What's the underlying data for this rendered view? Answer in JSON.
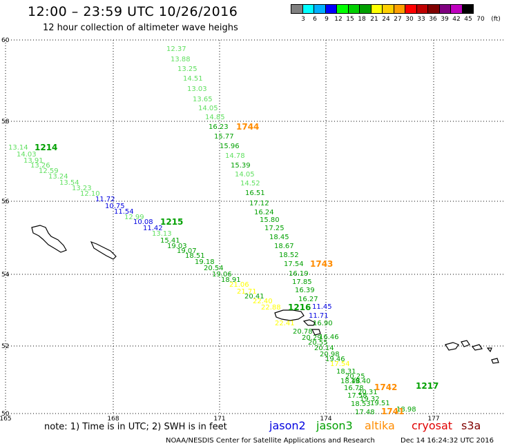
{
  "header": {
    "title": "12:00 – 23:59 UTC 10/26/2016",
    "subtitle": "12 hour collection of altimeter wave heighs"
  },
  "legend": {
    "colors": [
      "#808080",
      "#00ffff",
      "#00b0ff",
      "#0000ff",
      "#00ff00",
      "#00d000",
      "#00a000",
      "#ffff00",
      "#ffd000",
      "#ffa000",
      "#ff0000",
      "#c00000",
      "#800000",
      "#800080",
      "#c000c0",
      "#000000"
    ],
    "labels": [
      "3",
      "6",
      "9",
      "12",
      "15",
      "18",
      "21",
      "24",
      "27",
      "30",
      "33",
      "36",
      "39",
      "42",
      "45",
      "70",
      "(ft)"
    ]
  },
  "map": {
    "lat_labels": [
      "60",
      "58",
      "56",
      "54",
      "52",
      "50"
    ],
    "lon_labels": [
      "165",
      "168",
      "171",
      "174",
      "177"
    ],
    "colors": {
      "light": "#60e060",
      "green": "#00a000",
      "blue": "#0000e0",
      "yellow": "#ffff00",
      "orange": "#ff8c00"
    },
    "track_labels": [
      {
        "t": "1214",
        "c": "green",
        "b": true
      },
      {
        "t": "1215",
        "c": "green",
        "b": true
      },
      {
        "t": "1744",
        "c": "orange",
        "b": true
      },
      {
        "t": "1743",
        "c": "orange",
        "b": true
      },
      {
        "t": "1216",
        "c": "green",
        "b": true
      },
      {
        "t": "1217",
        "c": "green",
        "b": true
      },
      {
        "t": "1742",
        "c": "orange",
        "b": true
      },
      {
        "t": "1741",
        "c": "orange",
        "b": true
      }
    ],
    "swh_values": [
      {
        "v": "12.37",
        "c": "light"
      },
      {
        "v": "13.88",
        "c": "light"
      },
      {
        "v": "13.25",
        "c": "light"
      },
      {
        "v": "14.51",
        "c": "light"
      },
      {
        "v": "13.03",
        "c": "light"
      },
      {
        "v": "13.65",
        "c": "light"
      },
      {
        "v": "14.05",
        "c": "light"
      },
      {
        "v": "14.85",
        "c": "light"
      },
      {
        "v": "16.23",
        "c": "green"
      },
      {
        "v": "15.77",
        "c": "green"
      },
      {
        "v": "15.96",
        "c": "green"
      },
      {
        "v": "14.78",
        "c": "light"
      },
      {
        "v": "15.39",
        "c": "green"
      },
      {
        "v": "14.05",
        "c": "light"
      },
      {
        "v": "14.52",
        "c": "light"
      },
      {
        "v": "16.51",
        "c": "green"
      },
      {
        "v": "17.12",
        "c": "green"
      },
      {
        "v": "16.24",
        "c": "green"
      },
      {
        "v": "15.80",
        "c": "green"
      },
      {
        "v": "17.25",
        "c": "green"
      },
      {
        "v": "18.45",
        "c": "green"
      },
      {
        "v": "18.67",
        "c": "green"
      },
      {
        "v": "18.52",
        "c": "green"
      },
      {
        "v": "17.54",
        "c": "green"
      },
      {
        "v": "16.19",
        "c": "green"
      },
      {
        "v": "17.85",
        "c": "green"
      },
      {
        "v": "16.39",
        "c": "green"
      },
      {
        "v": "16.27",
        "c": "green"
      },
      {
        "v": "11.45",
        "c": "blue"
      },
      {
        "v": "11.71",
        "c": "blue"
      },
      {
        "v": "16.90",
        "c": "green"
      },
      {
        "v": "16.46",
        "c": "green"
      },
      {
        "v": "13.14",
        "c": "light"
      },
      {
        "v": "14.03",
        "c": "light"
      },
      {
        "v": "13.91",
        "c": "light"
      },
      {
        "v": "13.26",
        "c": "light"
      },
      {
        "v": "12.59",
        "c": "light"
      },
      {
        "v": "13.24",
        "c": "light"
      },
      {
        "v": "13.54",
        "c": "light"
      },
      {
        "v": "13.23",
        "c": "light"
      },
      {
        "v": "12.10",
        "c": "light"
      },
      {
        "v": "11.72",
        "c": "blue"
      },
      {
        "v": "10.75",
        "c": "blue"
      },
      {
        "v": "11.54",
        "c": "blue"
      },
      {
        "v": "12.99",
        "c": "light"
      },
      {
        "v": "10.08",
        "c": "blue"
      },
      {
        "v": "11.42",
        "c": "blue"
      },
      {
        "v": "13.13",
        "c": "light"
      },
      {
        "v": "15.41",
        "c": "green"
      },
      {
        "v": "19.03",
        "c": "green"
      },
      {
        "v": "19.07",
        "c": "green"
      },
      {
        "v": "18.51",
        "c": "green"
      },
      {
        "v": "19.18",
        "c": "green"
      },
      {
        "v": "20.54",
        "c": "green"
      },
      {
        "v": "19.06",
        "c": "green"
      },
      {
        "v": "18.91",
        "c": "green"
      },
      {
        "v": "21.06",
        "c": "yellow"
      },
      {
        "v": "21.71",
        "c": "yellow"
      },
      {
        "v": "20.41",
        "c": "green"
      },
      {
        "v": "22.40",
        "c": "yellow"
      },
      {
        "v": "22.88",
        "c": "yellow"
      },
      {
        "v": "22.41",
        "c": "yellow"
      },
      {
        "v": "20.78",
        "c": "green"
      },
      {
        "v": "20.29",
        "c": "green"
      },
      {
        "v": "20.55",
        "c": "green"
      },
      {
        "v": "20.14",
        "c": "green"
      },
      {
        "v": "20.98",
        "c": "green"
      },
      {
        "v": "19.46",
        "c": "green"
      },
      {
        "v": "17.54",
        "c": "yellow"
      },
      {
        "v": "18.31",
        "c": "green"
      },
      {
        "v": "20.25",
        "c": "green"
      },
      {
        "v": "18.48",
        "c": "green"
      },
      {
        "v": "19.40",
        "c": "green"
      },
      {
        "v": "16.78",
        "c": "green"
      },
      {
        "v": "20.31",
        "c": "green"
      },
      {
        "v": "17.58",
        "c": "green"
      },
      {
        "v": "19.32",
        "c": "green"
      },
      {
        "v": "18.53",
        "c": "green"
      },
      {
        "v": "19.51",
        "c": "green"
      },
      {
        "v": "17.48",
        "c": "green"
      },
      {
        "v": "18.98",
        "c": "green"
      }
    ]
  },
  "footer": {
    "note": "note: 1) Time is in UTC; 2) SWH is in feet",
    "missions": [
      {
        "name": "jason2",
        "color": "#0000e0"
      },
      {
        "name": "jason3",
        "color": "#00a000"
      },
      {
        "name": "altika",
        "color": "#ff8c00"
      },
      {
        "name": "cryosat",
        "color": "#e00000"
      },
      {
        "name": "s3a",
        "color": "#800000"
      }
    ],
    "credit": "NOAA/NESDIS Center for Satellite Applications and Research",
    "timestamp": "Dec 14 16:24:32 UTC 2016"
  }
}
